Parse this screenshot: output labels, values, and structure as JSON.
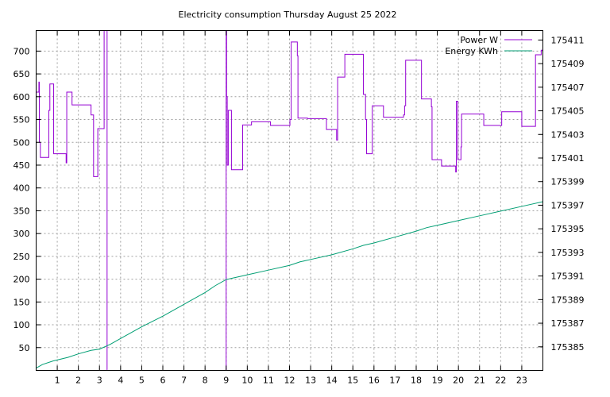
{
  "chart_data": {
    "type": "line",
    "title": "Electricity consumption Thursday August 25 2022",
    "xlim": [
      0,
      24
    ],
    "x_ticks": [
      1,
      2,
      3,
      4,
      5,
      6,
      7,
      8,
      9,
      10,
      11,
      12,
      13,
      14,
      15,
      16,
      17,
      18,
      19,
      20,
      21,
      22,
      23
    ],
    "y_left": {
      "lim": [
        0,
        745
      ],
      "ticks": [
        50,
        100,
        150,
        200,
        250,
        300,
        350,
        400,
        450,
        500,
        550,
        600,
        650,
        700
      ]
    },
    "y_right": {
      "lim": [
        175383.0,
        175411.8
      ],
      "ticks": [
        175385,
        175387,
        175389,
        175391,
        175393,
        175395,
        175397,
        175399,
        175401,
        175403,
        175405,
        175407,
        175409,
        175411
      ]
    },
    "grid": true,
    "legend_position": "top-right",
    "series": [
      {
        "name": "Power W",
        "axis": "left",
        "color": "#9400d3",
        "step": true,
        "points": [
          [
            0.0,
            610
          ],
          [
            0.13,
            632
          ],
          [
            0.15,
            500
          ],
          [
            0.2,
            467
          ],
          [
            0.55,
            467
          ],
          [
            0.6,
            570
          ],
          [
            0.65,
            628
          ],
          [
            0.8,
            628
          ],
          [
            0.83,
            475
          ],
          [
            1.4,
            475
          ],
          [
            1.42,
            455
          ],
          [
            1.45,
            610
          ],
          [
            1.65,
            610
          ],
          [
            1.7,
            582
          ],
          [
            2.55,
            582
          ],
          [
            2.6,
            560
          ],
          [
            2.7,
            560
          ],
          [
            2.72,
            425
          ],
          [
            2.9,
            425
          ],
          [
            2.92,
            530
          ],
          [
            3.2,
            530
          ],
          [
            3.22,
            745
          ],
          [
            3.35,
            745
          ],
          [
            3.36,
            0
          ],
          [
            8.98,
            0
          ],
          [
            9.0,
            745
          ],
          [
            9.02,
            600
          ],
          [
            9.05,
            450
          ],
          [
            9.1,
            570
          ],
          [
            9.2,
            570
          ],
          [
            9.25,
            440
          ],
          [
            9.75,
            440
          ],
          [
            9.78,
            538
          ],
          [
            10.15,
            538
          ],
          [
            10.2,
            545
          ],
          [
            11.05,
            545
          ],
          [
            11.1,
            537
          ],
          [
            12.0,
            537
          ],
          [
            12.02,
            550
          ],
          [
            12.08,
            720
          ],
          [
            12.35,
            720
          ],
          [
            12.37,
            690
          ],
          [
            12.4,
            553
          ],
          [
            12.8,
            553
          ],
          [
            12.85,
            552
          ],
          [
            13.7,
            552
          ],
          [
            13.75,
            528
          ],
          [
            14.2,
            528
          ],
          [
            14.23,
            505
          ],
          [
            14.28,
            643
          ],
          [
            14.6,
            643
          ],
          [
            14.62,
            693
          ],
          [
            15.45,
            693
          ],
          [
            15.5,
            605
          ],
          [
            15.55,
            605
          ],
          [
            15.6,
            550
          ],
          [
            15.65,
            475
          ],
          [
            15.9,
            475
          ],
          [
            15.92,
            580
          ],
          [
            16.4,
            580
          ],
          [
            16.45,
            555
          ],
          [
            17.35,
            555
          ],
          [
            17.4,
            560
          ],
          [
            17.45,
            580
          ],
          [
            17.5,
            680
          ],
          [
            18.2,
            680
          ],
          [
            18.25,
            595
          ],
          [
            18.7,
            595
          ],
          [
            18.72,
            578
          ],
          [
            18.75,
            462
          ],
          [
            19.15,
            462
          ],
          [
            19.2,
            448
          ],
          [
            19.85,
            448
          ],
          [
            19.87,
            435
          ],
          [
            19.9,
            590
          ],
          [
            19.95,
            590
          ],
          [
            19.97,
            462
          ],
          [
            20.1,
            462
          ],
          [
            20.12,
            490
          ],
          [
            20.15,
            562
          ],
          [
            21.15,
            562
          ],
          [
            21.2,
            537
          ],
          [
            22.0,
            537
          ],
          [
            22.05,
            567
          ],
          [
            22.95,
            567
          ],
          [
            23.0,
            535
          ],
          [
            23.6,
            535
          ],
          [
            23.65,
            692
          ],
          [
            23.9,
            692
          ],
          [
            23.92,
            702
          ],
          [
            24.0,
            702
          ]
        ]
      },
      {
        "name": "Energy KWh",
        "axis": "right",
        "color": "#009e73",
        "step": false,
        "points": [
          [
            0.0,
            175383.2
          ],
          [
            0.3,
            175383.5
          ],
          [
            0.8,
            175383.8
          ],
          [
            1.5,
            175384.1
          ],
          [
            2.0,
            175384.4
          ],
          [
            2.6,
            175384.7
          ],
          [
            3.0,
            175384.8
          ],
          [
            3.5,
            175385.2
          ],
          [
            4.0,
            175385.7
          ],
          [
            4.5,
            175386.2
          ],
          [
            5.0,
            175386.7
          ],
          [
            6.0,
            175387.6
          ],
          [
            7.0,
            175388.6
          ],
          [
            8.0,
            175389.6
          ],
          [
            8.5,
            175390.2
          ],
          [
            9.0,
            175390.7
          ],
          [
            9.5,
            175390.9
          ],
          [
            10.0,
            175391.1
          ],
          [
            11.0,
            175391.5
          ],
          [
            12.0,
            175391.9
          ],
          [
            12.5,
            175392.2
          ],
          [
            13.0,
            175392.4
          ],
          [
            14.0,
            175392.8
          ],
          [
            15.0,
            175393.3
          ],
          [
            15.5,
            175393.6
          ],
          [
            16.0,
            175393.8
          ],
          [
            17.0,
            175394.3
          ],
          [
            18.0,
            175394.8
          ],
          [
            18.5,
            175395.1
          ],
          [
            19.0,
            175395.3
          ],
          [
            20.0,
            175395.7
          ],
          [
            21.0,
            175396.1
          ],
          [
            22.0,
            175396.5
          ],
          [
            23.0,
            175396.9
          ],
          [
            24.0,
            175397.3
          ]
        ]
      }
    ]
  }
}
